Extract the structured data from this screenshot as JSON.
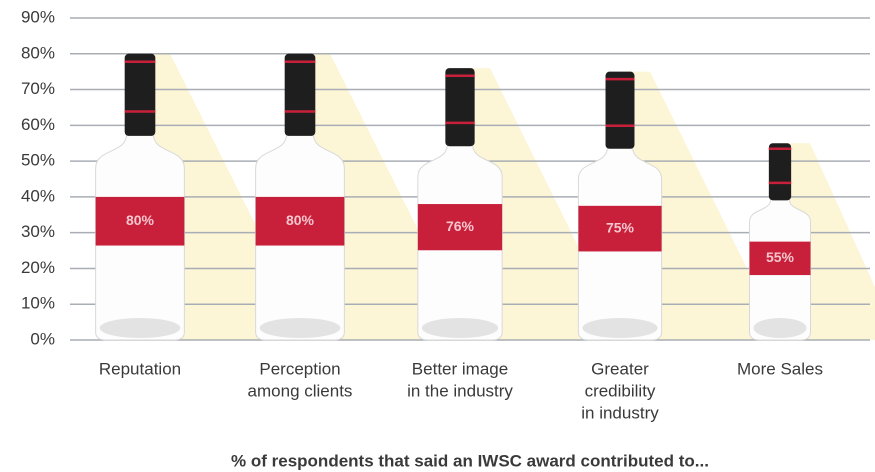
{
  "chart_data": {
    "type": "bottle",
    "categories": [
      [
        "Reputation"
      ],
      [
        "Perception",
        "among clients"
      ],
      [
        "Better image",
        "in the industry"
      ],
      [
        "Greater",
        "credibility",
        "in industry"
      ],
      [
        "More Sales"
      ]
    ],
    "values": [
      80,
      80,
      76,
      75,
      55
    ],
    "value_labels": [
      "80%",
      "80%",
      "76%",
      "75%",
      "55%"
    ],
    "color": "#c8203a",
    "ylim": [
      0,
      90
    ],
    "yticks": [
      {
        "value": 0,
        "label": "0%"
      },
      {
        "value": 10,
        "label": "10%"
      },
      {
        "value": 20,
        "label": "20%"
      },
      {
        "value": 30,
        "label": "30%"
      },
      {
        "value": 40,
        "label": "40%"
      },
      {
        "value": 50,
        "label": "50%"
      },
      {
        "value": 60,
        "label": "60%"
      },
      {
        "value": 70,
        "label": "70%"
      },
      {
        "value": 80,
        "label": "80%"
      },
      {
        "value": 90,
        "label": "90%"
      }
    ],
    "grid": true,
    "caption": "% of respondents that said an IWSC award contributed to..."
  }
}
